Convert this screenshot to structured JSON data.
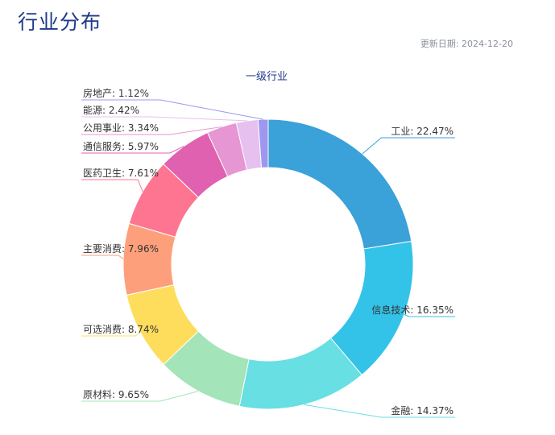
{
  "page": {
    "title": "行业分布",
    "update_date": "更新日期: 2024-12-20"
  },
  "chart_data": {
    "type": "pie",
    "subtype": "donut",
    "title": "一级行业",
    "categories": [
      "工业",
      "信息技术",
      "金融",
      "原材料",
      "可选消费",
      "主要消费",
      "医药卫生",
      "通信服务",
      "公用事业",
      "能源",
      "房地产"
    ],
    "values": [
      22.47,
      16.35,
      14.37,
      9.65,
      8.74,
      7.96,
      7.61,
      5.97,
      3.34,
      2.42,
      1.12
    ],
    "labels": [
      "工业: 22.47%",
      "信息技术: 16.35%",
      "金融: 14.37%",
      "原材料: 9.65%",
      "可选消费: 8.74%",
      "主要消费: 7.96%",
      "医药卫生: 7.61%",
      "通信服务: 5.97%",
      "公用事业: 3.34%",
      "能源: 2.42%",
      "房地产: 1.12%"
    ],
    "colors": [
      "#3aa1d9",
      "#34c3e8",
      "#67dfe3",
      "#a3e4b8",
      "#fedd5d",
      "#fe9f7c",
      "#fd7590",
      "#e061af",
      "#e696d2",
      "#e6c0ef",
      "#9d97f0"
    ],
    "label_text_color": "#333333",
    "title_color": "#1e3a8a"
  }
}
